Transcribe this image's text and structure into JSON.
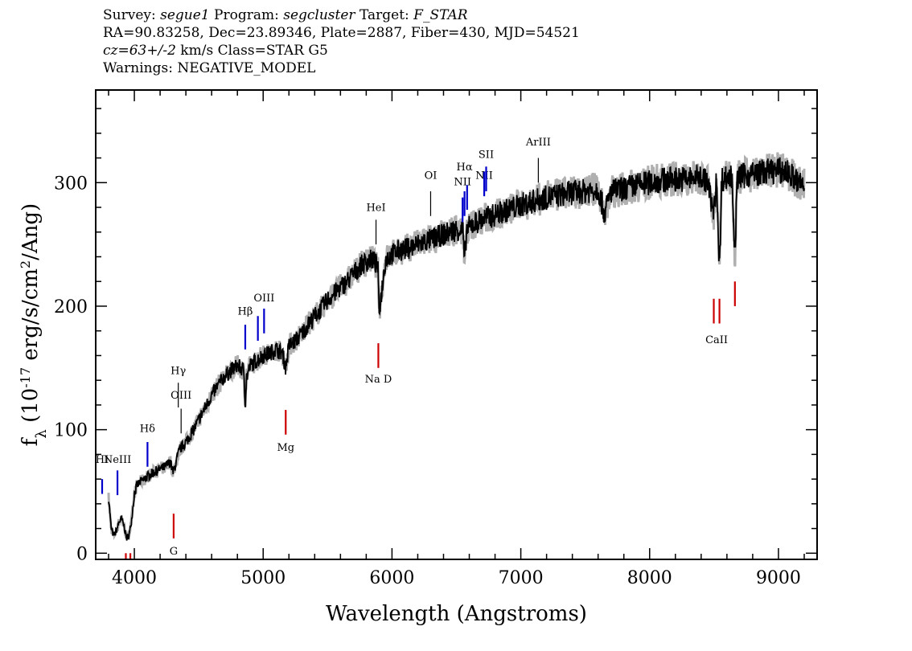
{
  "header": {
    "line1": {
      "survey_label": "Survey:",
      "survey": "segue1",
      "program_label": "Program:",
      "program": "segcluster",
      "target_label": "Target:",
      "target": "F_STAR"
    },
    "line2": "RA=90.83258, Dec=23.89346, Plate=2887, Fiber=430, MJD=54521",
    "line3": {
      "cz": "cz=63+/-2",
      "rest": " km/s Class=STAR G5"
    },
    "line4": "Warnings: NEGATIVE_MODEL"
  },
  "chart_data": {
    "type": "line",
    "xlabel": "Wavelength (Angstroms)",
    "ylabel": "f_λ (10^-17 erg/s/cm^2/Ang)",
    "xlim": [
      3700,
      9300
    ],
    "ylim": [
      -5,
      375
    ],
    "x_ticks": [
      4000,
      5000,
      6000,
      7000,
      8000,
      9000
    ],
    "y_ticks": [
      0,
      100,
      200,
      300
    ],
    "grid": false,
    "colors": {
      "flux": "#000000",
      "model": "#b0b0b0",
      "emission": "#0000cc",
      "absorption": "#cc0000",
      "sky": "#000000"
    },
    "series": [
      {
        "x": [
          3800,
          3820,
          3840,
          3860,
          3880,
          3900,
          3920,
          3940,
          3960,
          3980,
          4000,
          4020,
          4050,
          4080,
          4100,
          4130,
          4160,
          4200,
          4240,
          4280,
          4300,
          4320,
          4340,
          4360,
          4400,
          4450,
          4500,
          4550,
          4600,
          4650,
          4700,
          4750,
          4800,
          4850,
          4861,
          4870,
          4900,
          4950,
          5000,
          5050,
          5100,
          5150,
          5175,
          5200,
          5250,
          5300,
          5350,
          5400,
          5450,
          5500,
          5550,
          5600,
          5650,
          5700,
          5750,
          5800,
          5850,
          5890,
          5900,
          5950,
          6000,
          6050,
          6100,
          6150,
          6200,
          6250,
          6300,
          6350,
          6400,
          6450,
          6500,
          6550,
          6563,
          6580,
          6600,
          6650,
          6700,
          6750,
          6800,
          6850,
          6900,
          6950,
          7000,
          7100,
          7200,
          7300,
          7400,
          7500,
          7600,
          7650,
          7700,
          7800,
          7900,
          8000,
          8100,
          8200,
          8300,
          8400,
          8450,
          8498,
          8520,
          8542,
          8560,
          8600,
          8640,
          8662,
          8680,
          8700,
          8800,
          8900,
          9000,
          9050,
          9100,
          9150,
          9200
        ],
        "y": [
          45,
          20,
          14,
          18,
          25,
          28,
          22,
          12,
          15,
          28,
          48,
          55,
          58,
          60,
          62,
          64,
          66,
          68,
          70,
          74,
          65,
          72,
          80,
          85,
          90,
          98,
          108,
          118,
          128,
          136,
          143,
          148,
          152,
          148,
          120,
          142,
          152,
          156,
          160,
          162,
          165,
          162,
          150,
          168,
          172,
          178,
          185,
          192,
          198,
          205,
          210,
          215,
          220,
          226,
          232,
          236,
          238,
          232,
          195,
          238,
          242,
          245,
          246,
          248,
          250,
          252,
          254,
          256,
          258,
          260,
          262,
          262,
          235,
          262,
          264,
          268,
          270,
          272,
          274,
          276,
          278,
          280,
          282,
          285,
          288,
          290,
          292,
          293,
          295,
          275,
          293,
          295,
          298,
          300,
          302,
          303,
          303,
          305,
          300,
          275,
          303,
          228,
          303,
          304,
          305,
          240,
          303,
          305,
          307,
          309,
          310,
          309,
          306,
          300,
          298
        ]
      }
    ],
    "emission_lines": [
      {
        "label": "HI",
        "wave": 3750,
        "y_bottom": 48,
        "y_top": 60,
        "color": "#0000cc",
        "label_y": 73,
        "tilt": false
      },
      {
        "label": "NeIII",
        "wave": 3869,
        "y_bottom": 47,
        "y_top": 67,
        "color": "#0000cc",
        "label_y": 73,
        "tilt": false
      },
      {
        "label": "Hδ",
        "wave": 4102,
        "y_bottom": 70,
        "y_top": 90,
        "color": "#0000cc",
        "label_y": 98,
        "tilt": false
      },
      {
        "label": "Hγ",
        "wave": 4341,
        "y_bottom": 118,
        "y_top": 138,
        "color": "#000000",
        "label_y": 145,
        "tilt": false
      },
      {
        "label": "OIII",
        "wave": 4363,
        "y_bottom": 97,
        "y_top": 117,
        "color": "#000000",
        "label_y": 125,
        "tilt": false
      },
      {
        "label": "Hβ",
        "wave": 4861,
        "y_bottom": 165,
        "y_top": 185,
        "color": "#0000cc",
        "label_y": 193,
        "tilt": false
      },
      {
        "label": "",
        "wave": 4959,
        "y_bottom": 172,
        "y_top": 192,
        "color": "#0000cc",
        "label_y": 0,
        "tilt": false
      },
      {
        "label": "OIII",
        "wave": 5007,
        "y_bottom": 178,
        "y_top": 198,
        "color": "#0000cc",
        "label_y": 204,
        "tilt": false
      },
      {
        "label": "HeI",
        "wave": 5876,
        "y_bottom": 250,
        "y_top": 270,
        "color": "#000000",
        "label_y": 277,
        "tilt": false
      },
      {
        "label": "OI",
        "wave": 6300,
        "y_bottom": 273,
        "y_top": 293,
        "color": "#000000",
        "label_y": 303,
        "tilt": true
      },
      {
        "label": "NII",
        "wave": 6548,
        "y_bottom": 268,
        "y_top": 288,
        "color": "#0000cc",
        "label_y": 298,
        "tilt": false
      },
      {
        "label": "Hα",
        "wave": 6563,
        "y_bottom": 273,
        "y_top": 293,
        "color": "#0000cc",
        "label_y": 310,
        "tilt": false
      },
      {
        "label": "",
        "wave": 6583,
        "y_bottom": 278,
        "y_top": 298,
        "color": "#0000cc",
        "label_y": 0,
        "tilt": false
      },
      {
        "label": "NII",
        "wave": 6716,
        "y_bottom": 289,
        "y_top": 309,
        "color": "#0000cc",
        "label_y": 303,
        "tilt": false
      },
      {
        "label": "SII",
        "wave": 6731,
        "y_bottom": 293,
        "y_top": 313,
        "color": "#0000cc",
        "label_y": 320,
        "tilt": false
      },
      {
        "label": "ArIII",
        "wave": 7136,
        "y_bottom": 300,
        "y_top": 320,
        "color": "#000000",
        "label_y": 330,
        "tilt": false
      }
    ],
    "absorption_lines": [
      {
        "label": "",
        "wave": 3934,
        "y_bottom": -5,
        "y_top": 0,
        "color": "#cc0000",
        "label_y": 0
      },
      {
        "label": "",
        "wave": 3969,
        "y_bottom": -5,
        "y_top": 0,
        "color": "#cc0000",
        "label_y": 0
      },
      {
        "label": "G",
        "wave": 4305,
        "y_bottom": 12,
        "y_top": 32,
        "color": "#cc0000",
        "label_y": 0
      },
      {
        "label": "Mg",
        "wave": 5175,
        "y_bottom": 96,
        "y_top": 116,
        "color": "#cc0000",
        "label_y": 83
      },
      {
        "label": "Na D",
        "wave": 5894,
        "y_bottom": 150,
        "y_top": 170,
        "color": "#cc0000",
        "label_y": 138
      },
      {
        "label": "",
        "wave": 8498,
        "y_bottom": 186,
        "y_top": 206,
        "color": "#cc0000",
        "label_y": 0
      },
      {
        "label": "CaII",
        "wave": 8520,
        "y_bottom": 0,
        "y_top": 0,
        "color": "#cc0000",
        "label_y": 170
      },
      {
        "label": "",
        "wave": 8542,
        "y_bottom": 186,
        "y_top": 206,
        "color": "#cc0000",
        "label_y": 0
      },
      {
        "label": "",
        "wave": 8662,
        "y_bottom": 200,
        "y_top": 220,
        "color": "#cc0000",
        "label_y": 0
      }
    ]
  }
}
